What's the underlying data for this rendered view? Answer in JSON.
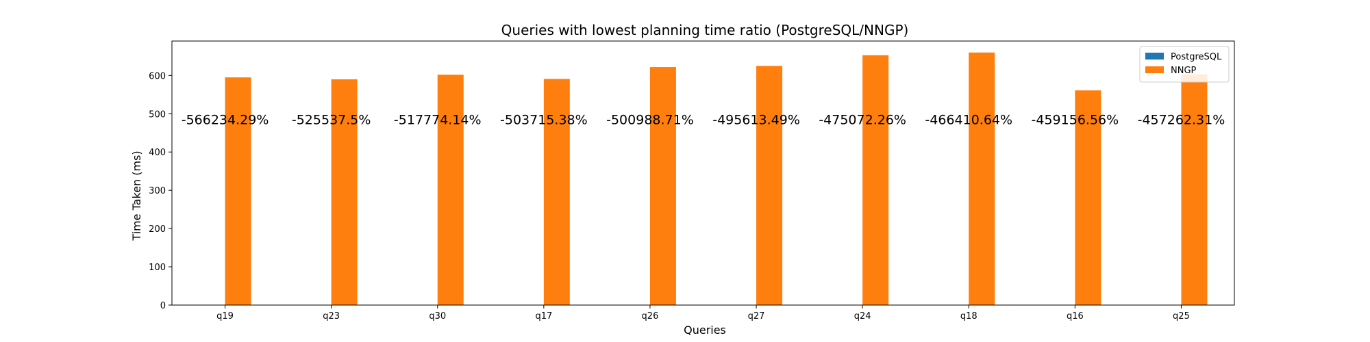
{
  "chart_data": {
    "type": "bar",
    "title": "Queries with lowest planning time ratio (PostgreSQL/NNGP)",
    "xlabel": "Queries",
    "ylabel": "Time Taken (ms)",
    "ylim": [
      0,
      690
    ],
    "yticks": [
      0,
      100,
      200,
      300,
      400,
      500,
      600
    ],
    "categories": [
      "q19",
      "q23",
      "q30",
      "q17",
      "q26",
      "q27",
      "q24",
      "q18",
      "q16",
      "q25"
    ],
    "series": [
      {
        "name": "PostgreSQL",
        "color": "#1f77b4",
        "values": [
          0.1,
          0.1,
          0.1,
          0.1,
          0.1,
          0.1,
          0.1,
          0.1,
          0.1,
          0.1
        ]
      },
      {
        "name": "NNGP",
        "color": "#ff7f0e",
        "values": [
          595,
          590,
          602,
          591,
          622,
          625,
          653,
          660,
          561,
          603
        ]
      }
    ],
    "annotations": [
      "-566234.29%",
      "-525537.5%",
      "-517774.14%",
      "-503715.38%",
      "-500988.71%",
      "-495613.49%",
      "-475072.26%",
      "-466410.64%",
      "-459156.56%",
      "-457262.31%"
    ],
    "annotation_y": 473,
    "legend_position": "top-right",
    "grid": false
  }
}
